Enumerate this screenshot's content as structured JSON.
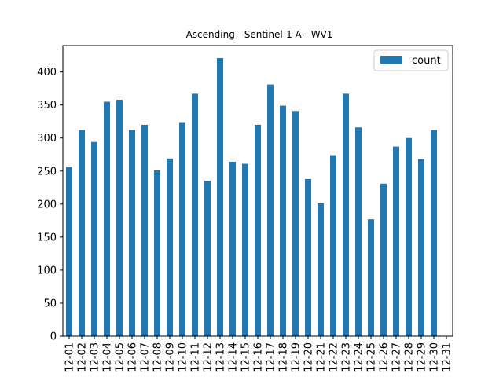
{
  "chart_data": {
    "type": "bar",
    "title": "Ascending - Sentinel-1 A - WV1",
    "xlabel": "",
    "ylabel": "",
    "categories": [
      "12-01",
      "12-02",
      "12-03",
      "12-04",
      "12-05",
      "12-06",
      "12-07",
      "12-08",
      "12-09",
      "12-10",
      "12-11",
      "12-12",
      "12-13",
      "12-14",
      "12-15",
      "12-16",
      "12-17",
      "12-18",
      "12-19",
      "12-20",
      "12-21",
      "12-22",
      "12-23",
      "12-24",
      "12-25",
      "12-26",
      "12-27",
      "12-28",
      "12-29",
      "12-30",
      "12-31"
    ],
    "series": [
      {
        "name": "count",
        "color": "#1f77b4",
        "values": [
          256,
          312,
          294,
          355,
          358,
          312,
          320,
          251,
          269,
          324,
          367,
          235,
          421,
          264,
          261,
          320,
          381,
          349,
          341,
          238,
          201,
          274,
          367,
          316,
          177,
          231,
          287,
          300,
          268,
          312,
          0
        ]
      }
    ],
    "ylim": [
      0,
      440
    ],
    "yticks": [
      0,
      50,
      100,
      150,
      200,
      250,
      300,
      350,
      400
    ],
    "grid": false,
    "legend": "top-right"
  }
}
